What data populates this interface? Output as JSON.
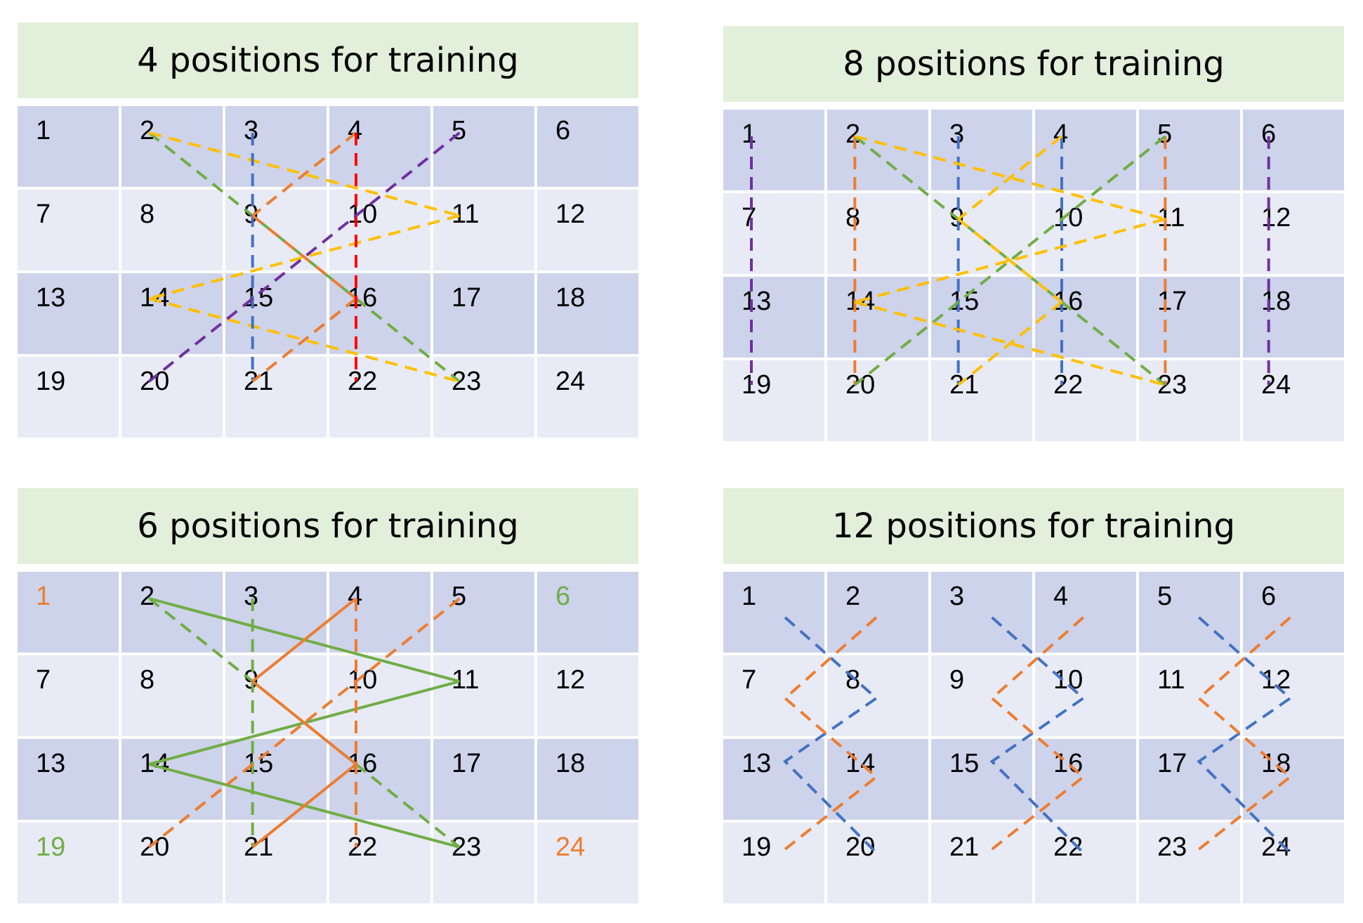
{
  "panels": [
    {
      "title": "4 positions for training",
      "cells": [
        "1",
        "2",
        "3",
        "4",
        "5",
        "6",
        "7",
        "8",
        "9",
        "10",
        "11",
        "12",
        "13",
        "14",
        "15",
        "16",
        "17",
        "18",
        "19",
        "20",
        "21",
        "22",
        "23",
        "24"
      ],
      "cell_colors": {},
      "lines": [
        {
          "from": 2,
          "to": 23,
          "color": "#70ad47",
          "style": "dashed"
        },
        {
          "from": 2,
          "to": 11,
          "color": "#ffc000",
          "style": "dashed"
        },
        {
          "from": 11,
          "to": 14,
          "color": "#ffc000",
          "style": "dashed"
        },
        {
          "from": 14,
          "to": 23,
          "color": "#ffc000",
          "style": "dashed"
        },
        {
          "from": 3,
          "to": 21,
          "color": "#4472c4",
          "style": "dashed"
        },
        {
          "from": 4,
          "to": 9,
          "color": "#ed7d31",
          "style": "dashed"
        },
        {
          "from": 9,
          "to": 16,
          "color": "#ed7d31",
          "style": "dashed"
        },
        {
          "from": 16,
          "to": 21,
          "color": "#ed7d31",
          "style": "dashed"
        },
        {
          "from": 4,
          "to": 22,
          "color": "#ff0000",
          "style": "dashed"
        },
        {
          "from": 5,
          "to": 20,
          "color": "#7030a0",
          "style": "dashed"
        }
      ]
    },
    {
      "title": "8 positions for training",
      "cells": [
        "1",
        "2",
        "3",
        "4",
        "5",
        "6",
        "7",
        "8",
        "9",
        "10",
        "11",
        "12",
        "13",
        "14",
        "15",
        "16",
        "17",
        "18",
        "19",
        "20",
        "21",
        "22",
        "23",
        "24"
      ],
      "cell_colors": {},
      "lines": [
        {
          "from": 1,
          "to": 19,
          "color": "#7030a0",
          "style": "dashed"
        },
        {
          "from": 6,
          "to": 24,
          "color": "#7030a0",
          "style": "dashed"
        },
        {
          "from": 2,
          "to": 20,
          "color": "#ed7d31",
          "style": "dashed"
        },
        {
          "from": 5,
          "to": 23,
          "color": "#ed7d31",
          "style": "dashed"
        },
        {
          "from": 3,
          "to": 21,
          "color": "#4472c4",
          "style": "dashed"
        },
        {
          "from": 4,
          "to": 22,
          "color": "#4472c4",
          "style": "dashed"
        },
        {
          "from": 2,
          "to": 23,
          "color": "#70ad47",
          "style": "dashed"
        },
        {
          "from": 5,
          "to": 20,
          "color": "#70ad47",
          "style": "dashed"
        },
        {
          "from": 2,
          "to": 11,
          "color": "#ffc000",
          "style": "dashed"
        },
        {
          "from": 11,
          "to": 14,
          "color": "#ffc000",
          "style": "dashed"
        },
        {
          "from": 14,
          "to": 23,
          "color": "#ffc000",
          "style": "dashed"
        },
        {
          "from": 4,
          "to": 9,
          "color": "#ffc000",
          "style": "dashed"
        },
        {
          "from": 9,
          "to": 16,
          "color": "#ffc000",
          "style": "dashed"
        },
        {
          "from": 16,
          "to": 21,
          "color": "#ffc000",
          "style": "dashed"
        }
      ]
    },
    {
      "title": "6 positions for training",
      "cells": [
        "1",
        "2",
        "3",
        "4",
        "5",
        "6",
        "7",
        "8",
        "9",
        "10",
        "11",
        "12",
        "13",
        "14",
        "15",
        "16",
        "17",
        "18",
        "19",
        "20",
        "21",
        "22",
        "23",
        "24"
      ],
      "cell_colors": {
        "1": "#ed7d31",
        "6": "#70ad47",
        "19": "#70ad47",
        "24": "#ed7d31"
      },
      "lines": [
        {
          "from": 2,
          "to": 11,
          "color": "#70ad47",
          "style": "solid"
        },
        {
          "from": 11,
          "to": 14,
          "color": "#70ad47",
          "style": "solid"
        },
        {
          "from": 14,
          "to": 23,
          "color": "#70ad47",
          "style": "solid"
        },
        {
          "from": 2,
          "to": 23,
          "color": "#70ad47",
          "style": "dashed"
        },
        {
          "from": 3,
          "to": 21,
          "color": "#70ad47",
          "style": "dashed"
        },
        {
          "from": 4,
          "to": 9,
          "color": "#ed7d31",
          "style": "solid"
        },
        {
          "from": 9,
          "to": 16,
          "color": "#ed7d31",
          "style": "solid"
        },
        {
          "from": 16,
          "to": 21,
          "color": "#ed7d31",
          "style": "solid"
        },
        {
          "from": 4,
          "to": 22,
          "color": "#ed7d31",
          "style": "dashed"
        },
        {
          "from": 5,
          "to": 20,
          "color": "#ed7d31",
          "style": "dashed"
        }
      ]
    },
    {
      "title": "12 positions for training",
      "cells": [
        "1",
        "2",
        "3",
        "4",
        "5",
        "6",
        "7",
        "8",
        "9",
        "10",
        "11",
        "12",
        "13",
        "14",
        "15",
        "16",
        "17",
        "18",
        "19",
        "20",
        "21",
        "22",
        "23",
        "24"
      ],
      "cell_colors": {},
      "zigzags": [
        {
          "pair": 0,
          "color": "#4472c4",
          "path": "blue"
        },
        {
          "pair": 0,
          "color": "#ed7d31",
          "path": "orange"
        },
        {
          "pair": 1,
          "color": "#4472c4",
          "path": "blue"
        },
        {
          "pair": 1,
          "color": "#ed7d31",
          "path": "orange"
        },
        {
          "pair": 2,
          "color": "#4472c4",
          "path": "blue"
        },
        {
          "pair": 2,
          "color": "#ed7d31",
          "path": "orange"
        }
      ]
    }
  ]
}
